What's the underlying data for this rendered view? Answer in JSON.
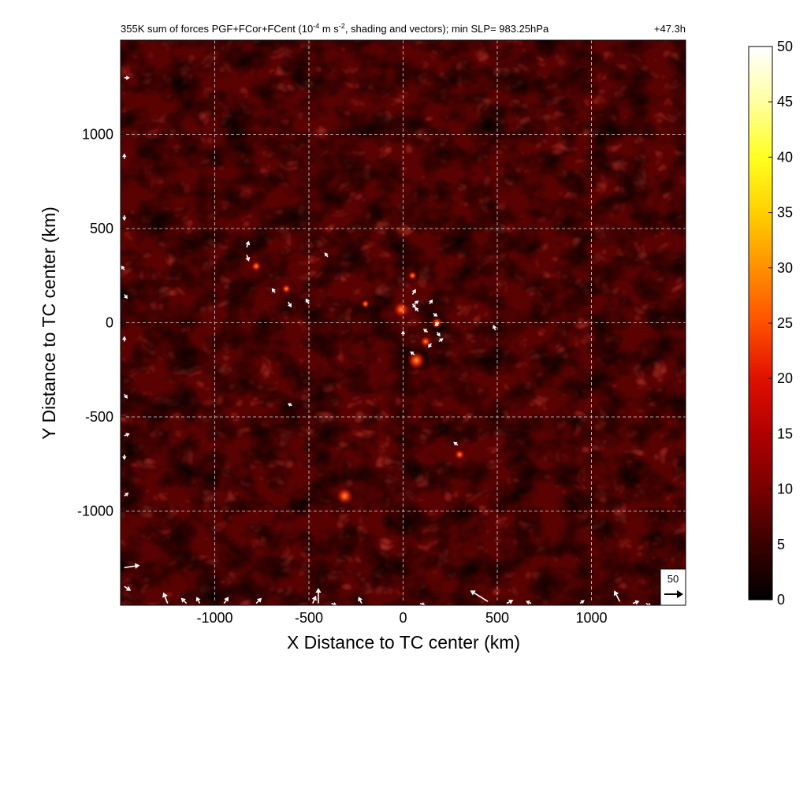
{
  "chart_data": {
    "type": "heatmap",
    "title": "355K sum of forces PGF+FCor+FCent (10",
    "title_exp1": "-4",
    "title_mid": " m s",
    "title_exp2": "-2",
    "title_end": ", shading and vectors); min SLP= 983.25hPa",
    "time_label": "+47.3h",
    "xlabel": "X Distance to TC center (km)",
    "ylabel": "Y Distance to TC center (km)",
    "xlim": [
      -1500,
      1500
    ],
    "ylim": [
      -1500,
      1500
    ],
    "xticks": [
      -1000,
      -500,
      0,
      500,
      1000
    ],
    "yticks": [
      -1000,
      -500,
      0,
      500,
      1000
    ],
    "xtick_labels": [
      "-1000",
      "-500",
      "0",
      "500",
      "1000"
    ],
    "ytick_labels": [
      "-1000",
      "-500",
      "0",
      "500",
      "1000"
    ],
    "grid": true,
    "colorbar": {
      "min": 0,
      "max": 50,
      "ticks": [
        0,
        5,
        10,
        15,
        20,
        25,
        30,
        35,
        40,
        45,
        50
      ],
      "tick_labels": [
        "0",
        "5",
        "10",
        "15",
        "20",
        "25",
        "30",
        "35",
        "40",
        "45",
        "50"
      ],
      "colors": [
        "#000000",
        "#3a0000",
        "#7a0000",
        "#b00000",
        "#e01000",
        "#ff5000",
        "#ff9000",
        "#ffd000",
        "#ffff20",
        "#ffffa0",
        "#ffffff"
      ]
    },
    "reference_vector": {
      "value": "50",
      "label": "50"
    },
    "background_level": 6,
    "hotspots": [
      {
        "x": -10,
        "y": 70,
        "value": 18
      },
      {
        "x": 70,
        "y": -200,
        "value": 22
      },
      {
        "x": -310,
        "y": -920,
        "value": 20
      },
      {
        "x": 180,
        "y": 0,
        "value": 12
      },
      {
        "x": 120,
        "y": -100,
        "value": 11
      },
      {
        "x": -780,
        "y": 300,
        "value": 10
      },
      {
        "x": -620,
        "y": 180,
        "value": 9
      },
      {
        "x": 300,
        "y": -700,
        "value": 10
      },
      {
        "x": -200,
        "y": 100,
        "value": 8
      },
      {
        "x": 50,
        "y": 250,
        "value": 8
      }
    ],
    "vectors": [
      {
        "x": -830,
        "y": 400,
        "u": 2,
        "v": 6
      },
      {
        "x": -830,
        "y": 360,
        "u": 2,
        "v": -6
      },
      {
        "x": -680,
        "y": 160,
        "u": -3,
        "v": 4
      },
      {
        "x": -610,
        "y": 110,
        "u": 3,
        "v": -5
      },
      {
        "x": -500,
        "y": 100,
        "u": -3,
        "v": 5
      },
      {
        "x": -400,
        "y": 350,
        "u": -3,
        "v": 4
      },
      {
        "x": -590,
        "y": -440,
        "u": -4,
        "v": 2
      },
      {
        "x": 50,
        "y": 150,
        "u": 3,
        "v": 5
      },
      {
        "x": 60,
        "y": 100,
        "u": 4,
        "v": 3
      },
      {
        "x": 80,
        "y": 60,
        "u": -3,
        "v": 4
      },
      {
        "x": 140,
        "y": 100,
        "u": 3,
        "v": 4
      },
      {
        "x": 160,
        "y": 50,
        "u": 4,
        "v": -3
      },
      {
        "x": 190,
        "y": 0,
        "u": -4,
        "v": -3
      },
      {
        "x": 180,
        "y": -50,
        "u": 3,
        "v": -4
      },
      {
        "x": 130,
        "y": -50,
        "u": -4,
        "v": 3
      },
      {
        "x": 150,
        "y": -110,
        "u": -3,
        "v": -4
      },
      {
        "x": 190,
        "y": -100,
        "u": 4,
        "v": 3
      },
      {
        "x": 0,
        "y": -70,
        "u": 0,
        "v": 5
      },
      {
        "x": 60,
        "y": -170,
        "u": -4,
        "v": 3
      },
      {
        "x": 50,
        "y": 100,
        "u": 3,
        "v": -4
      },
      {
        "x": 490,
        "y": -40,
        "u": -2,
        "v": 5
      },
      {
        "x": 290,
        "y": -650,
        "u": -4,
        "v": 3
      },
      {
        "x": -1480,
        "y": 1300,
        "u": 5,
        "v": 0
      },
      {
        "x": -1480,
        "y": 870,
        "u": 0,
        "v": 5
      },
      {
        "x": -1480,
        "y": 570,
        "u": 0,
        "v": -5
      },
      {
        "x": -1480,
        "y": 280,
        "u": -3,
        "v": 4
      },
      {
        "x": -1480,
        "y": 150,
        "u": 3,
        "v": -4
      },
      {
        "x": -1480,
        "y": -100,
        "u": 0,
        "v": 5
      },
      {
        "x": -1480,
        "y": -380,
        "u": 3,
        "v": -4
      },
      {
        "x": -1480,
        "y": -600,
        "u": 5,
        "v": 2
      },
      {
        "x": -1480,
        "y": -700,
        "u": 0,
        "v": -5
      },
      {
        "x": -1480,
        "y": -920,
        "u": 4,
        "v": 3
      },
      {
        "x": -1480,
        "y": -1300,
        "u": 14,
        "v": 2
      },
      {
        "x": -1480,
        "y": -1400,
        "u": 6,
        "v": -4
      },
      {
        "x": -1250,
        "y": -1490,
        "u": -4,
        "v": 10
      },
      {
        "x": -1150,
        "y": -1490,
        "u": -5,
        "v": 5
      },
      {
        "x": -1080,
        "y": -1490,
        "u": -3,
        "v": 6
      },
      {
        "x": -950,
        "y": -1490,
        "u": 4,
        "v": 6
      },
      {
        "x": -780,
        "y": -1490,
        "u": 5,
        "v": 5
      },
      {
        "x": -480,
        "y": -1490,
        "u": 3,
        "v": 7
      },
      {
        "x": -450,
        "y": -1490,
        "u": 0,
        "v": 14
      },
      {
        "x": -380,
        "y": -1490,
        "u": 5,
        "v": -2
      },
      {
        "x": -220,
        "y": -1490,
        "u": -3,
        "v": 6
      },
      {
        "x": 90,
        "y": -1490,
        "u": 5,
        "v": -2
      },
      {
        "x": 450,
        "y": -1480,
        "u": -16,
        "v": 10
      },
      {
        "x": 550,
        "y": -1490,
        "u": 6,
        "v": 3
      },
      {
        "x": 680,
        "y": -1490,
        "u": -5,
        "v": 2
      },
      {
        "x": 940,
        "y": -1490,
        "u": 4,
        "v": 3
      },
      {
        "x": 1150,
        "y": -1480,
        "u": -5,
        "v": 10
      },
      {
        "x": 1220,
        "y": -1490,
        "u": 6,
        "v": 2
      },
      {
        "x": 1290,
        "y": -1490,
        "u": 5,
        "v": -3
      }
    ]
  }
}
